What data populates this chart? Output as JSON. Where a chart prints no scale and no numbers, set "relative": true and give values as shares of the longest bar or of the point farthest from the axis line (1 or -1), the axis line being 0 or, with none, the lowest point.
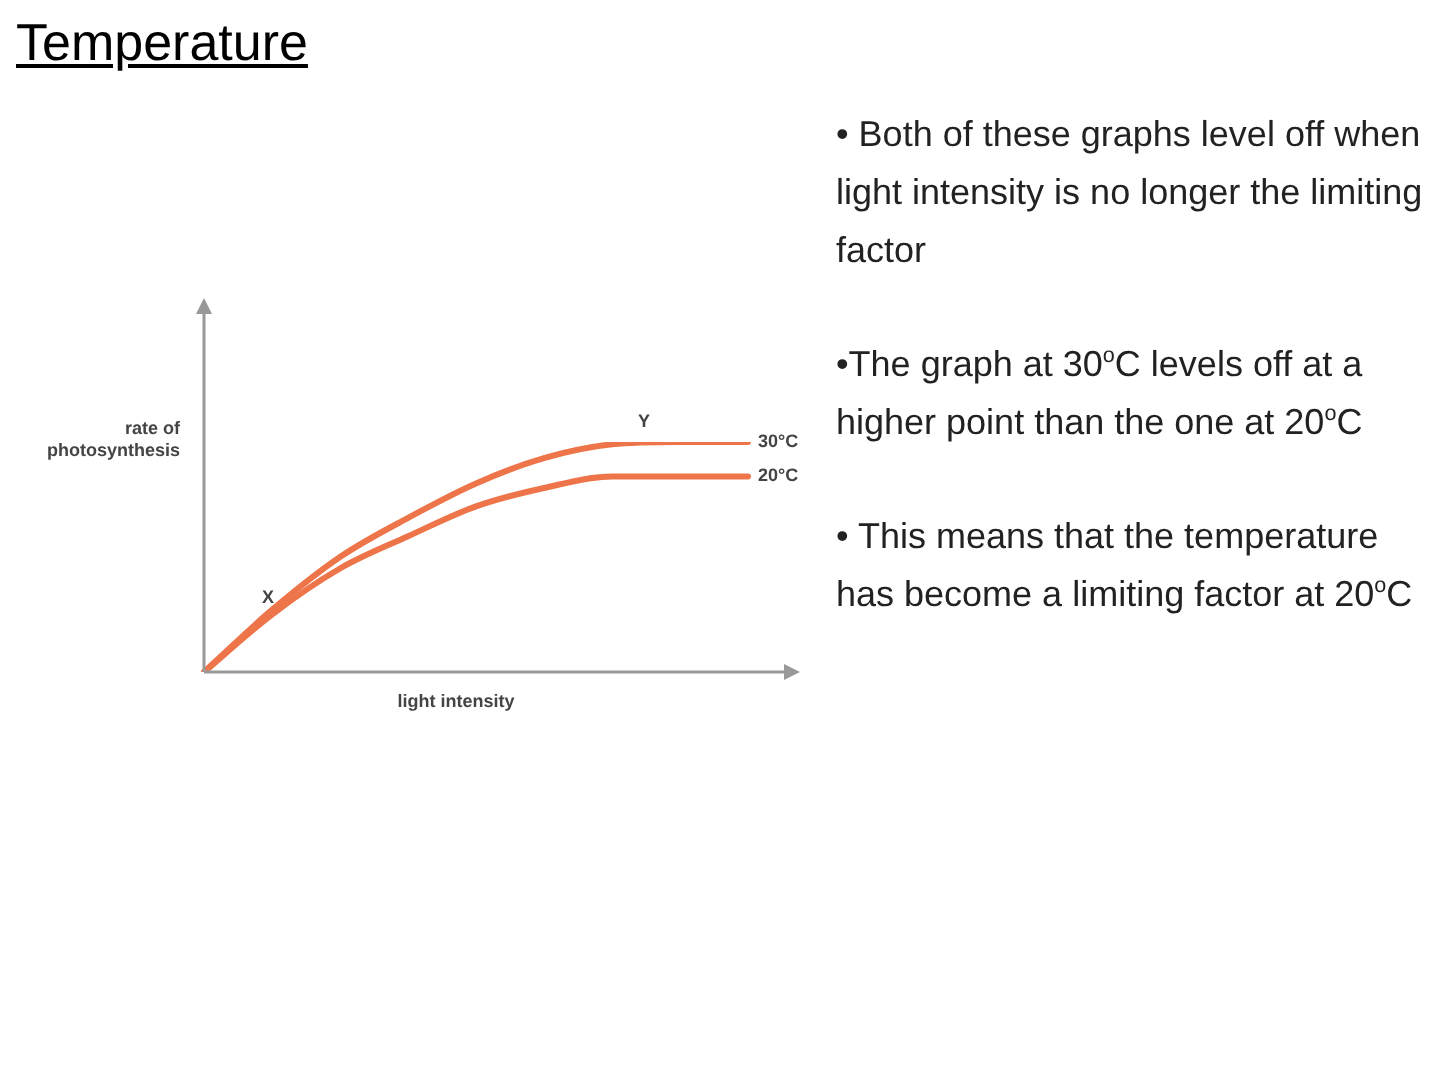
{
  "chart_data": {
    "type": "line",
    "title": "Temperature",
    "xlabel": "light intensity",
    "ylabel": "rate of photosynthesis",
    "relative": true,
    "legend": false,
    "marker": "none",
    "categories": [
      null,
      null,
      null,
      null,
      null,
      null,
      null,
      null,
      null
    ],
    "series": [
      {
        "name": "30°C",
        "color": "#ee7449",
        "values": [
          0,
          0.27,
          0.5,
          0.67,
          0.82,
          0.93,
          0.99,
          1,
          1
        ]
      },
      {
        "name": "20°C",
        "color": "#ee7449",
        "values": [
          0,
          0.25,
          0.45,
          0.59,
          0.72,
          0.8,
          0.85,
          0.85,
          0.85
        ]
      }
    ],
    "annotations": [
      "X",
      "Y",
      "• Both of these graphs level off when light intensity is no longer the limiting factor",
      "•The graph at 30$^{o}$C levels off at a higher point than the one at 20$^{o}$C",
      "• This means that the temperature has become a limiting factor at 20$^{o}$C"
    ]
  }
}
